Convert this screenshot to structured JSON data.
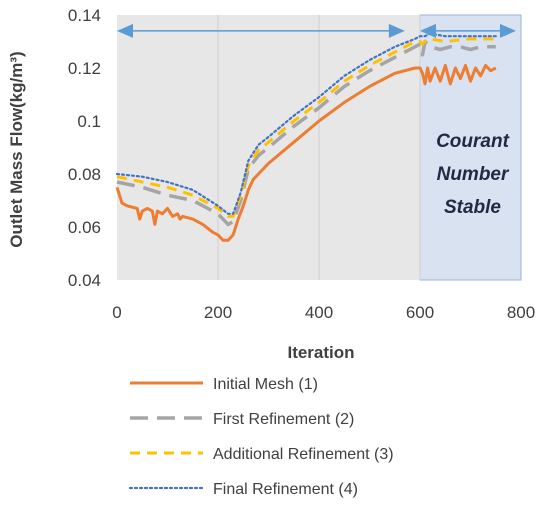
{
  "chart_data": {
    "type": "line",
    "xlabel": "Iteration",
    "ylabel": "Outlet Mass Flow(kg/m³)",
    "xlim": [
      0,
      800
    ],
    "ylim": [
      0.04,
      0.14
    ],
    "xticks": [
      "0",
      "200",
      "400",
      "600",
      "800"
    ],
    "yticks": [
      "0.04",
      "0.06",
      "0.08",
      "0.1",
      "0.12",
      "0.14"
    ],
    "grid": "vertical",
    "legend_position": "bottom",
    "shaded_region": {
      "x_start": 600,
      "x_end": 800,
      "color": "#d9e2f1",
      "label_lines": [
        "Courant",
        "Number",
        "Stable"
      ]
    },
    "arrows": [
      {
        "x_start": 0,
        "x_end": 570,
        "y": 0.134,
        "color": "#5b9bd5"
      },
      {
        "x_start": 600,
        "x_end": 790,
        "y": 0.134,
        "color": "#5b9bd5"
      }
    ],
    "series": [
      {
        "name": "Initial Mesh (1)",
        "color": "#ed7d31",
        "style": "solid",
        "x": [
          0,
          10,
          20,
          40,
          45,
          50,
          60,
          70,
          75,
          80,
          90,
          100,
          110,
          120,
          125,
          130,
          150,
          170,
          190,
          200,
          210,
          220,
          230,
          240,
          250,
          260,
          270,
          280,
          300,
          350,
          400,
          450,
          500,
          550,
          590,
          600,
          605,
          610,
          615,
          620,
          630,
          640,
          650,
          660,
          670,
          680,
          690,
          700,
          710,
          720,
          730,
          740,
          750
        ],
        "y": [
          0.075,
          0.069,
          0.068,
          0.067,
          0.063,
          0.066,
          0.067,
          0.066,
          0.061,
          0.066,
          0.065,
          0.067,
          0.064,
          0.065,
          0.063,
          0.064,
          0.063,
          0.061,
          0.058,
          0.057,
          0.055,
          0.055,
          0.057,
          0.063,
          0.068,
          0.074,
          0.078,
          0.08,
          0.084,
          0.092,
          0.1,
          0.107,
          0.113,
          0.118,
          0.12,
          0.12,
          0.118,
          0.114,
          0.12,
          0.115,
          0.12,
          0.115,
          0.121,
          0.114,
          0.12,
          0.116,
          0.121,
          0.115,
          0.12,
          0.117,
          0.121,
          0.119,
          0.12
        ]
      },
      {
        "name": "First Refinement (2)",
        "color": "#a5a5a5",
        "style": "longdash",
        "x": [
          0,
          50,
          100,
          150,
          200,
          220,
          230,
          245,
          260,
          280,
          300,
          350,
          400,
          450,
          500,
          550,
          590,
          600,
          605,
          610,
          620,
          640,
          660,
          680,
          700,
          720,
          750
        ],
        "y": [
          0.077,
          0.075,
          0.072,
          0.07,
          0.065,
          0.061,
          0.062,
          0.07,
          0.082,
          0.087,
          0.09,
          0.098,
          0.105,
          0.113,
          0.119,
          0.124,
          0.128,
          0.129,
          0.125,
          0.13,
          0.128,
          0.127,
          0.128,
          0.128,
          0.127,
          0.128,
          0.128
        ]
      },
      {
        "name": "Additional Refinement (3)",
        "color": "#ffc000",
        "style": "dash",
        "x": [
          0,
          50,
          100,
          150,
          200,
          220,
          230,
          245,
          260,
          280,
          300,
          350,
          400,
          450,
          500,
          550,
          590,
          600,
          605,
          610,
          620,
          650,
          700,
          750
        ],
        "y": [
          0.079,
          0.077,
          0.075,
          0.072,
          0.067,
          0.064,
          0.064,
          0.072,
          0.083,
          0.089,
          0.092,
          0.1,
          0.107,
          0.115,
          0.121,
          0.126,
          0.13,
          0.13,
          0.129,
          0.13,
          0.131,
          0.13,
          0.131,
          0.131
        ]
      },
      {
        "name": "Final Refinement (4)",
        "color": "#4472c4",
        "style": "dotted",
        "x": [
          0,
          50,
          100,
          150,
          200,
          220,
          230,
          245,
          260,
          280,
          300,
          350,
          400,
          450,
          500,
          550,
          590,
          600,
          610,
          620,
          650,
          700,
          750
        ],
        "y": [
          0.08,
          0.079,
          0.077,
          0.074,
          0.068,
          0.065,
          0.065,
          0.073,
          0.085,
          0.091,
          0.094,
          0.102,
          0.109,
          0.117,
          0.123,
          0.128,
          0.131,
          0.132,
          0.132,
          0.133,
          0.132,
          0.132,
          0.132
        ]
      }
    ]
  }
}
